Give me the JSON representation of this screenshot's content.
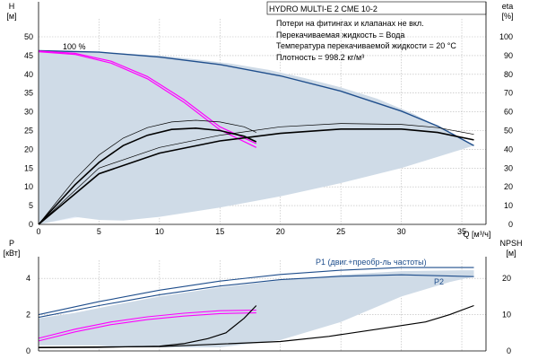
{
  "chart_data": [
    {
      "type": "line",
      "title": "HYDRO MULTI-E 2 CME 10-2",
      "xlabel": "Q [м³/ч]",
      "ylabel_left": "H\n[м]",
      "ylabel_right": "eta\n[%]",
      "xlim": [
        0,
        37
      ],
      "ylim": [
        0,
        50
      ],
      "ylim_right": [
        0,
        100
      ],
      "grid": true,
      "x_ticks": [
        0,
        5,
        10,
        15,
        20,
        25,
        30,
        35
      ],
      "y_ticks": [
        0,
        5,
        10,
        15,
        20,
        25,
        30,
        35,
        40,
        45,
        50
      ],
      "y_ticks_right": [
        0,
        10,
        20,
        30,
        40,
        50,
        60,
        70,
        80,
        90,
        100
      ],
      "notes": [
        "Потери на фитингах и клапанах не вкл.",
        "Перекачиваемая жидкость = Вода",
        "Температура перекачиваемой жидкости = 20 °C",
        "Плотность = 998.2 кг/м³"
      ],
      "curve_label": "100 %",
      "operating_range": {
        "x": [
          0,
          2,
          4,
          7,
          10,
          13,
          16,
          19,
          22,
          25,
          28,
          31,
          34,
          36,
          34,
          30,
          25,
          20,
          15,
          10,
          7,
          5,
          3,
          0
        ],
        "y": [
          46,
          46,
          46,
          45.5,
          45,
          44,
          42.8,
          41.2,
          39,
          36.5,
          33.5,
          29.5,
          24.5,
          21,
          19,
          15,
          11,
          7.5,
          4.5,
          2,
          1,
          1.2,
          2,
          0
        ]
      },
      "series": [
        {
          "role": "head_max",
          "color": "#1f4e8c",
          "x": [
            0,
            5,
            10,
            15,
            20,
            25,
            30,
            33,
            36
          ],
          "y": [
            46.3,
            45.9,
            44.6,
            42.6,
            39.6,
            35.5,
            30.2,
            26.2,
            21
          ]
        },
        {
          "role": "head_min_speed",
          "color": "#ff00ff",
          "x": [
            0,
            3,
            6,
            9,
            12,
            15,
            18
          ],
          "y": [
            46.2,
            45.6,
            43.5,
            39.4,
            33.3,
            26,
            21.5
          ]
        },
        {
          "role": "head_min_speed_lower",
          "color": "#ff00ff",
          "x": [
            0,
            3,
            6,
            9,
            12,
            15,
            18
          ],
          "y": [
            46,
            45.3,
            43,
            38.8,
            32.6,
            25.2,
            20.5
          ]
        },
        {
          "role": "eta_max",
          "color": "#000000",
          "x_eta": [
            0,
            5,
            10,
            15,
            20,
            25,
            30,
            33,
            36
          ],
          "eta": [
            0,
            27,
            38,
            44.5,
            48.5,
            50.8,
            50.8,
            49,
            45
          ]
        },
        {
          "role": "eta_max_upper",
          "color": "#000000",
          "x_eta": [
            0,
            5,
            10,
            15,
            20,
            25,
            30,
            33,
            36
          ],
          "eta": [
            0,
            30,
            41,
            47.5,
            52,
            53.8,
            53.3,
            51.6,
            48
          ]
        },
        {
          "role": "eta_min_speed",
          "color": "#000000",
          "x_eta": [
            0,
            3,
            5,
            7,
            9,
            11,
            13,
            15,
            17,
            18
          ],
          "eta": [
            0,
            21,
            33,
            42,
            47.5,
            50.6,
            51.3,
            50,
            47,
            44
          ]
        },
        {
          "role": "eta_min_speed_upper",
          "color": "#000000",
          "x_eta": [
            0,
            3,
            5,
            7,
            9,
            11,
            13,
            15,
            17,
            18
          ],
          "eta": [
            0,
            24,
            37,
            46,
            51.6,
            54.6,
            55.5,
            54.6,
            52,
            49
          ]
        }
      ]
    },
    {
      "type": "line",
      "xlabel": "",
      "ylabel_left": "P\n[кВт]",
      "ylabel_right": "NPSH\n[м]",
      "xlim": [
        0,
        37
      ],
      "ylim": [
        0,
        5
      ],
      "ylim_right": [
        0,
        25
      ],
      "grid": true,
      "y_ticks": [
        0,
        2,
        4
      ],
      "y_ticks_right": [
        0,
        10,
        20
      ],
      "operating_range": {
        "x": [
          0,
          3,
          6,
          10,
          15,
          20,
          25,
          30,
          35,
          36,
          36,
          34,
          30,
          25,
          20,
          15,
          10,
          7,
          5,
          3,
          0
        ],
        "y": [
          1.8,
          2.1,
          2.5,
          3.0,
          3.5,
          3.9,
          4.2,
          4.4,
          4.45,
          4.45,
          4.1,
          3.8,
          3.0,
          1.6,
          0.6,
          0.2,
          0.2,
          0.2,
          0.3,
          0.3,
          0.3
        ]
      },
      "series": [
        {
          "name": "P1 (двиг.+преобр-ль частоты)",
          "color": "#1f4e8c",
          "x": [
            0,
            5,
            10,
            15,
            20,
            25,
            30,
            36
          ],
          "y": [
            2.0,
            2.72,
            3.35,
            3.85,
            4.22,
            4.45,
            4.6,
            4.6
          ]
        },
        {
          "name": "P2",
          "color": "#1f4e8c",
          "x": [
            0,
            5,
            10,
            15,
            20,
            25,
            30,
            36
          ],
          "y": [
            1.85,
            2.5,
            3.1,
            3.58,
            3.93,
            4.12,
            4.2,
            4.1
          ]
        },
        {
          "role": "p1_min_speed",
          "color": "#ff00ff",
          "x": [
            0,
            3,
            6,
            9,
            12,
            15,
            18
          ],
          "y": [
            0.7,
            1.2,
            1.6,
            1.88,
            2.08,
            2.22,
            2.25
          ]
        },
        {
          "role": "p2_min_speed",
          "color": "#ff00ff",
          "x": [
            0,
            3,
            6,
            9,
            12,
            15,
            18
          ],
          "y": [
            0.55,
            1.05,
            1.45,
            1.73,
            1.92,
            2.06,
            2.1
          ]
        },
        {
          "role": "npsh_min_speed",
          "color": "#000000",
          "x_npsh": [
            0,
            5,
            10,
            12,
            14,
            15.5,
            17,
            18
          ],
          "npsh": [
            0.9,
            1.0,
            1.3,
            2.0,
            3.4,
            5.0,
            9.0,
            12.5
          ]
        },
        {
          "role": "npsh_max",
          "color": "#000000",
          "x_npsh": [
            0,
            10,
            20,
            24,
            28,
            32,
            34,
            36
          ],
          "npsh": [
            1.0,
            1.2,
            2.6,
            4.0,
            6.0,
            8.0,
            10.0,
            12.5
          ]
        }
      ]
    }
  ]
}
